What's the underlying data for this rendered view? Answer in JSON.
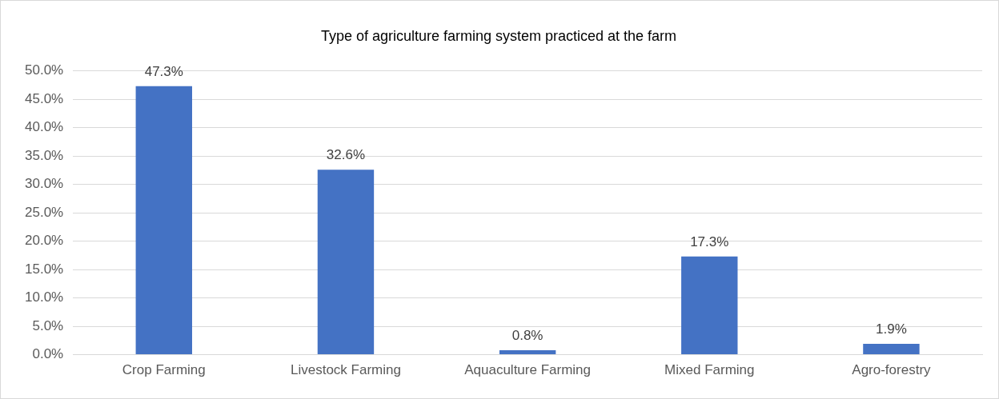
{
  "chart_data": {
    "type": "bar",
    "title": "Type of agriculture farming system practiced at the farm",
    "categories": [
      "Crop Farming",
      "Livestock Farming",
      "Aquaculture Farming",
      "Mixed Farming",
      "Agro-forestry"
    ],
    "values": [
      47.3,
      32.6,
      0.8,
      17.3,
      1.9
    ],
    "value_labels": [
      "47.3%",
      "32.6%",
      "0.8%",
      "17.3%",
      "1.9%"
    ],
    "color": "#4472c4",
    "ylim": [
      0,
      50
    ],
    "yticks": [
      {
        "value": 0,
        "label": "0.0%"
      },
      {
        "value": 5,
        "label": "5.0%"
      },
      {
        "value": 10,
        "label": "10.0%"
      },
      {
        "value": 15,
        "label": "15.0%"
      },
      {
        "value": 20,
        "label": "20.0%"
      },
      {
        "value": 25,
        "label": "25.0%"
      },
      {
        "value": 30,
        "label": "30.0%"
      },
      {
        "value": 35,
        "label": "35.0%"
      },
      {
        "value": 40,
        "label": "40.0%"
      },
      {
        "value": 45,
        "label": "45.0%"
      },
      {
        "value": 50,
        "label": "50.0%"
      }
    ],
    "grid": "y"
  }
}
